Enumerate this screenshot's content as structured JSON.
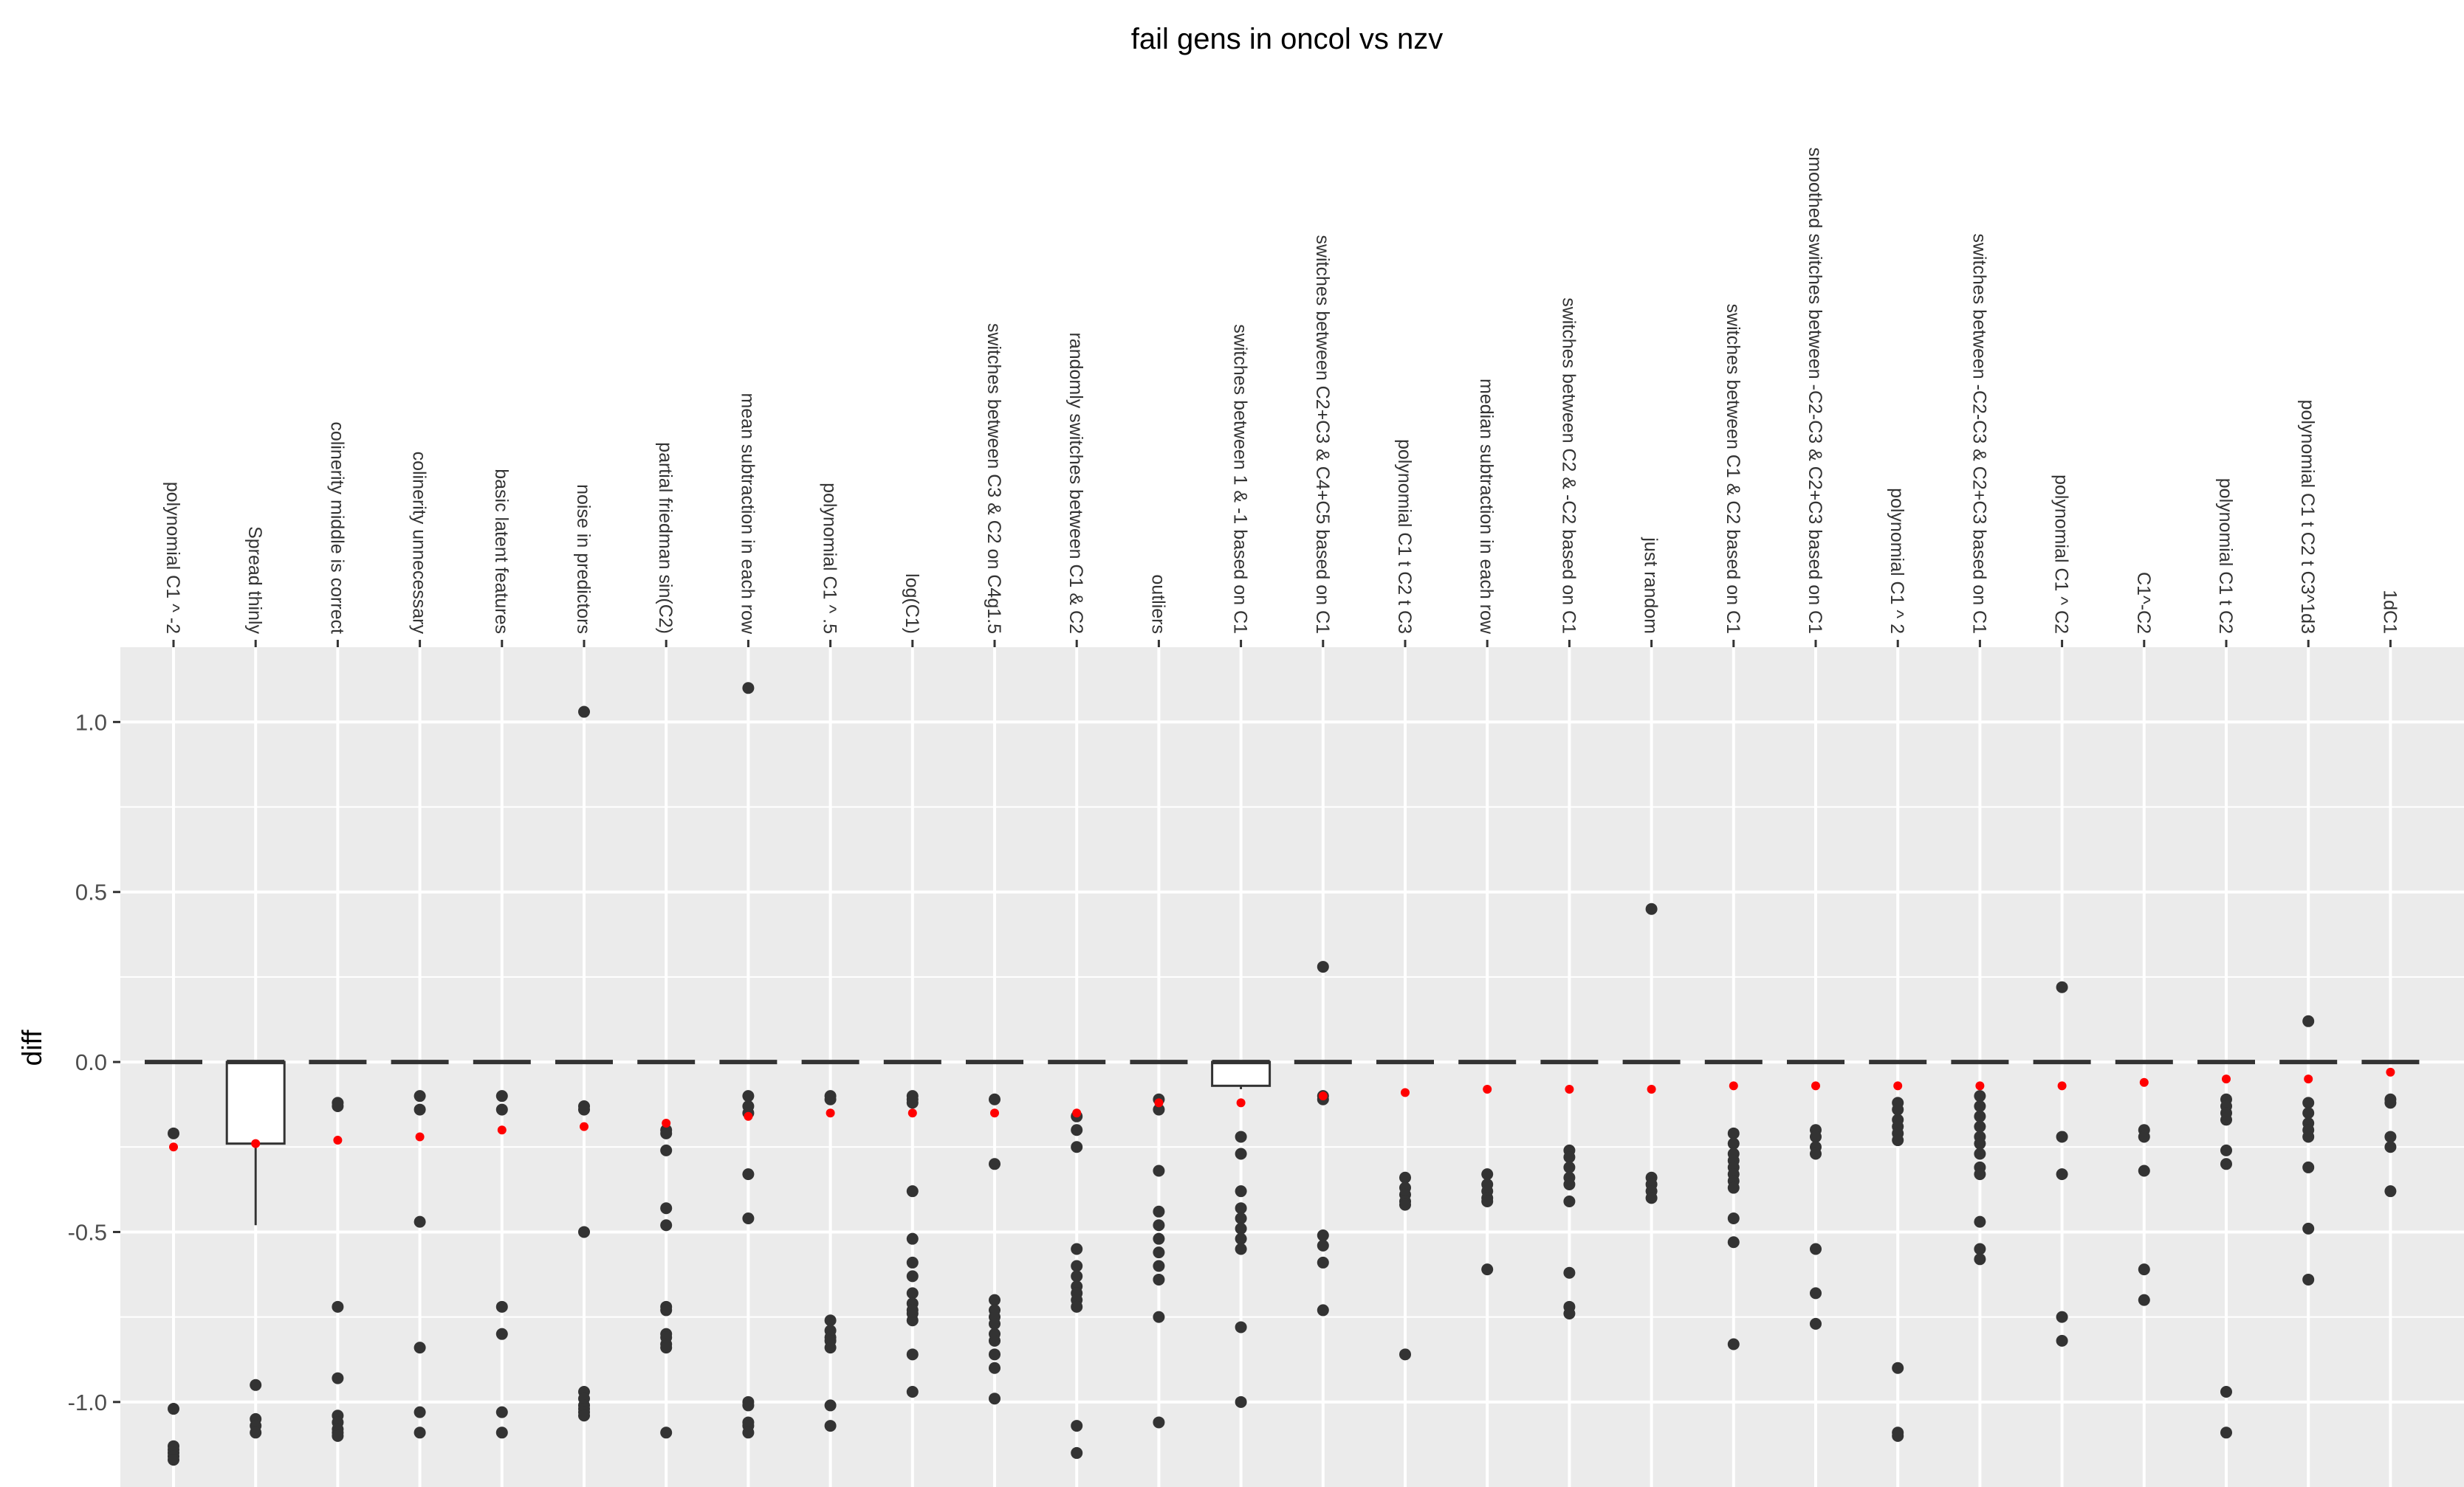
{
  "chart_data": {
    "type": "boxplot",
    "title": "fail gens in oncol vs nzv",
    "ylabel": "diff",
    "xlabel": "",
    "ylim": [
      -1.25,
      1.22
    ],
    "yticks": [
      1.0,
      0.5,
      0.0,
      -0.5,
      -1.0
    ],
    "ytick_labels": [
      "1.0",
      "0.5",
      "0.0",
      "-0.5",
      "-1.0"
    ],
    "x_label_position": "top",
    "grid": true,
    "colors": {
      "panel": "#ebebeb",
      "grid": "#ffffff",
      "box": "#333333",
      "points": "#333333",
      "mean": "#ff0000"
    },
    "categories": [
      {
        "label": "polynomial C1 ^ -2",
        "mean": -0.25,
        "box": [
          0,
          0,
          0,
          0,
          0
        ],
        "points": [
          -0.21,
          -1.02,
          -1.13,
          -1.14,
          -1.15,
          -1.16,
          -1.17
        ]
      },
      {
        "label": "Spread thinly",
        "mean": -0.24,
        "box": [
          -0.48,
          -0.24,
          0,
          0,
          0
        ],
        "points": [
          -0.95,
          -1.05,
          -1.07,
          -1.09
        ]
      },
      {
        "label": "colinerity middle is correct",
        "mean": -0.23,
        "box": [
          0,
          0,
          0,
          0,
          0
        ],
        "points": [
          -0.12,
          -0.13,
          -0.72,
          -0.93,
          -1.04,
          -1.06,
          -1.08,
          -1.09,
          -1.1
        ]
      },
      {
        "label": "colinerity unnecessary",
        "mean": -0.22,
        "box": [
          0,
          0,
          0,
          0,
          0
        ],
        "points": [
          -0.1,
          -0.14,
          -0.47,
          -0.84,
          -1.03,
          -1.09
        ]
      },
      {
        "label": "basic latent features",
        "mean": -0.2,
        "box": [
          0,
          0,
          0,
          0,
          0
        ],
        "points": [
          -0.1,
          -0.14,
          -0.72,
          -0.8,
          -1.03,
          -1.09
        ]
      },
      {
        "label": "noise in predictors",
        "mean": -0.19,
        "box": [
          0,
          0,
          0,
          0,
          0
        ],
        "points": [
          1.03,
          -0.13,
          -0.14,
          -0.5,
          -0.97,
          -0.99,
          -1.01,
          -1.02,
          -1.03,
          -1.04
        ]
      },
      {
        "label": "partial friedman sin(C2)",
        "mean": -0.18,
        "box": [
          0,
          0,
          0,
          0,
          0
        ],
        "points": [
          -0.2,
          -0.21,
          -0.26,
          -0.43,
          -0.48,
          -0.72,
          -0.73,
          -0.8,
          -0.81,
          -0.83,
          -0.84,
          -1.09
        ]
      },
      {
        "label": "mean subtraction in each row",
        "mean": -0.16,
        "box": [
          0,
          0,
          0,
          0,
          0
        ],
        "points": [
          1.1,
          -0.1,
          -0.13,
          -0.15,
          -0.33,
          -0.46,
          -1.0,
          -1.01,
          -1.06,
          -1.07,
          -1.09
        ]
      },
      {
        "label": "polynomial C1 ^ .5",
        "mean": -0.15,
        "box": [
          0,
          0,
          0,
          0,
          0
        ],
        "points": [
          -0.1,
          -0.11,
          -0.76,
          -0.79,
          -0.81,
          -0.82,
          -0.84,
          -1.01,
          -1.07
        ]
      },
      {
        "label": "log(C1)",
        "mean": -0.15,
        "box": [
          0,
          0,
          0,
          0,
          0
        ],
        "points": [
          -0.1,
          -0.11,
          -0.12,
          -0.38,
          -0.52,
          -0.59,
          -0.63,
          -0.68,
          -0.71,
          -0.73,
          -0.74,
          -0.76,
          -0.86,
          -0.97
        ]
      },
      {
        "label": "switches between C3 & C2 on C4g1.5",
        "mean": -0.15,
        "box": [
          0,
          0,
          0,
          0,
          0
        ],
        "points": [
          -0.11,
          -0.3,
          -0.7,
          -0.73,
          -0.75,
          -0.77,
          -0.8,
          -0.82,
          -0.86,
          -0.9,
          -0.99
        ]
      },
      {
        "label": "randomly switches between C1 & C2",
        "mean": -0.15,
        "box": [
          0,
          0,
          0,
          0,
          0
        ],
        "points": [
          -0.16,
          -0.2,
          -0.25,
          -0.55,
          -0.6,
          -0.63,
          -0.66,
          -0.68,
          -0.7,
          -0.72,
          -1.07,
          -1.15
        ]
      },
      {
        "label": "outliers",
        "mean": -0.12,
        "box": [
          0,
          0,
          0,
          0,
          0
        ],
        "points": [
          -0.11,
          -0.14,
          -0.32,
          -0.44,
          -0.48,
          -0.52,
          -0.56,
          -0.6,
          -0.64,
          -0.75,
          -1.06
        ]
      },
      {
        "label": "switches between 1 & -1 based on C1",
        "mean": -0.12,
        "box": [
          -0.08,
          -0.07,
          0,
          0,
          0
        ],
        "points": [
          -0.22,
          -0.27,
          -0.38,
          -0.43,
          -0.46,
          -0.49,
          -0.52,
          -0.55,
          -0.78,
          -1.0
        ]
      },
      {
        "label": "switches between C2+C3 & C4+C5 based on C1",
        "mean": -0.1,
        "box": [
          0,
          0,
          0,
          0,
          0
        ],
        "points": [
          0.28,
          -0.1,
          -0.11,
          -0.51,
          -0.54,
          -0.59,
          -0.73
        ]
      },
      {
        "label": "polynomial C1 t C2 t C3",
        "mean": -0.09,
        "box": [
          0,
          0,
          0,
          0,
          0
        ],
        "points": [
          -0.34,
          -0.37,
          -0.39,
          -0.41,
          -0.42,
          -0.86
        ]
      },
      {
        "label": "median subtraction in each row",
        "mean": -0.08,
        "box": [
          0,
          0,
          0,
          0,
          0
        ],
        "points": [
          -0.33,
          -0.36,
          -0.38,
          -0.4,
          -0.41,
          -0.61
        ]
      },
      {
        "label": "switches between C2 & -C2 based on C1",
        "mean": -0.08,
        "box": [
          0,
          0,
          0,
          0,
          0
        ],
        "points": [
          -0.26,
          -0.28,
          -0.31,
          -0.34,
          -0.36,
          -0.41,
          -0.62,
          -0.72,
          -0.74
        ]
      },
      {
        "label": "just random",
        "mean": -0.08,
        "box": [
          0,
          0,
          0,
          0,
          0
        ],
        "points": [
          0.45,
          -0.34,
          -0.36,
          -0.38,
          -0.4
        ]
      },
      {
        "label": "switches between C1 & C2 based on C1",
        "mean": -0.07,
        "box": [
          0,
          0,
          0,
          0,
          0
        ],
        "points": [
          -0.21,
          -0.24,
          -0.27,
          -0.29,
          -0.31,
          -0.33,
          -0.35,
          -0.37,
          -0.46,
          -0.53,
          -0.83
        ]
      },
      {
        "label": "smoothed switches between -C2-C3 & C2+C3 based on C1",
        "mean": -0.07,
        "box": [
          0,
          0,
          0,
          0,
          0
        ],
        "points": [
          -0.2,
          -0.22,
          -0.25,
          -0.27,
          -0.55,
          -0.68,
          -0.77
        ]
      },
      {
        "label": "polynomial C1 ^ 2",
        "mean": -0.07,
        "box": [
          0,
          0,
          0,
          0,
          0
        ],
        "points": [
          -0.12,
          -0.14,
          -0.17,
          -0.19,
          -0.21,
          -0.23,
          -0.9,
          -1.09,
          -1.1
        ]
      },
      {
        "label": "switches between -C2-C3 & C2+C3 based on C1",
        "mean": -0.07,
        "box": [
          0,
          0,
          0,
          0,
          0
        ],
        "points": [
          -0.1,
          -0.13,
          -0.16,
          -0.19,
          -0.22,
          -0.24,
          -0.27,
          -0.31,
          -0.33,
          -0.47,
          -0.55,
          -0.58
        ]
      },
      {
        "label": "polynomial C1 ^ C2",
        "mean": -0.07,
        "box": [
          0,
          0,
          0,
          0,
          0
        ],
        "points": [
          0.22,
          -0.22,
          -0.33,
          -0.75,
          -0.82
        ]
      },
      {
        "label": "C1^-C2",
        "mean": -0.06,
        "box": [
          0,
          0,
          0,
          0,
          0
        ],
        "points": [
          -0.2,
          -0.22,
          -0.32,
          -0.61,
          -0.7
        ]
      },
      {
        "label": "polynomial C1 t C2",
        "mean": -0.05,
        "box": [
          0,
          0,
          0,
          0,
          0
        ],
        "points": [
          -0.11,
          -0.13,
          -0.15,
          -0.17,
          -0.26,
          -0.3,
          -0.97,
          -1.09
        ]
      },
      {
        "label": "polynomial C1 t C2 t C3^1d3",
        "mean": -0.05,
        "box": [
          0,
          0,
          0,
          0,
          0
        ],
        "points": [
          0.12,
          -0.12,
          -0.15,
          -0.18,
          -0.2,
          -0.22,
          -0.31,
          -0.49,
          -0.64
        ]
      },
      {
        "label": "1dC1",
        "mean": -0.03,
        "box": [
          0,
          0,
          0,
          0,
          0
        ],
        "points": [
          -0.11,
          -0.12,
          -0.22,
          -0.25,
          -0.38
        ]
      }
    ]
  }
}
